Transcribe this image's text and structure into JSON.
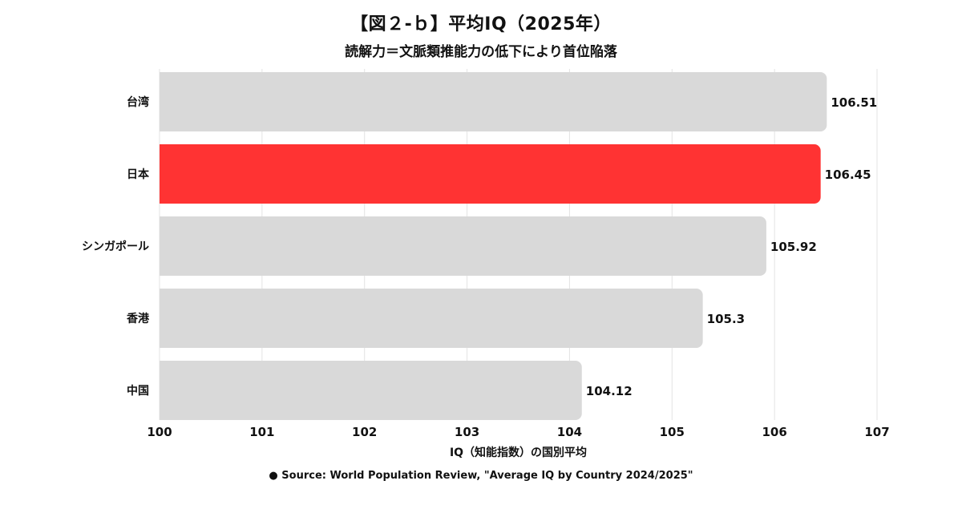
{
  "header": {
    "title": "【図２-ｂ】平均IQ（2025年）",
    "subtitle": "読解力＝文脈類推能力の低下により首位陥落"
  },
  "footer": {
    "source": "● Source: World Population Review, \"Average IQ by Country 2024/2025\""
  },
  "colors": {
    "highlight": "#ff3333",
    "default_bar": "#d9d9d9",
    "grid": "#e3e3e3"
  },
  "chart_data": {
    "type": "bar",
    "orientation": "horizontal",
    "categories": [
      "台湾",
      "日本",
      "シンガポール",
      "香港",
      "中国"
    ],
    "values": [
      106.51,
      106.45,
      105.92,
      105.3,
      104.12
    ],
    "value_labels": [
      "106.51",
      "106.45",
      "105.92",
      "105.3",
      "104.12"
    ],
    "highlight_category": "日本",
    "xlabel": "IQ（知能指数）の国別平均",
    "ylabel": "",
    "xlim": [
      100,
      107
    ],
    "xticks": [
      "100",
      "101",
      "102",
      "103",
      "104",
      "105",
      "106",
      "107"
    ],
    "grid": true
  }
}
